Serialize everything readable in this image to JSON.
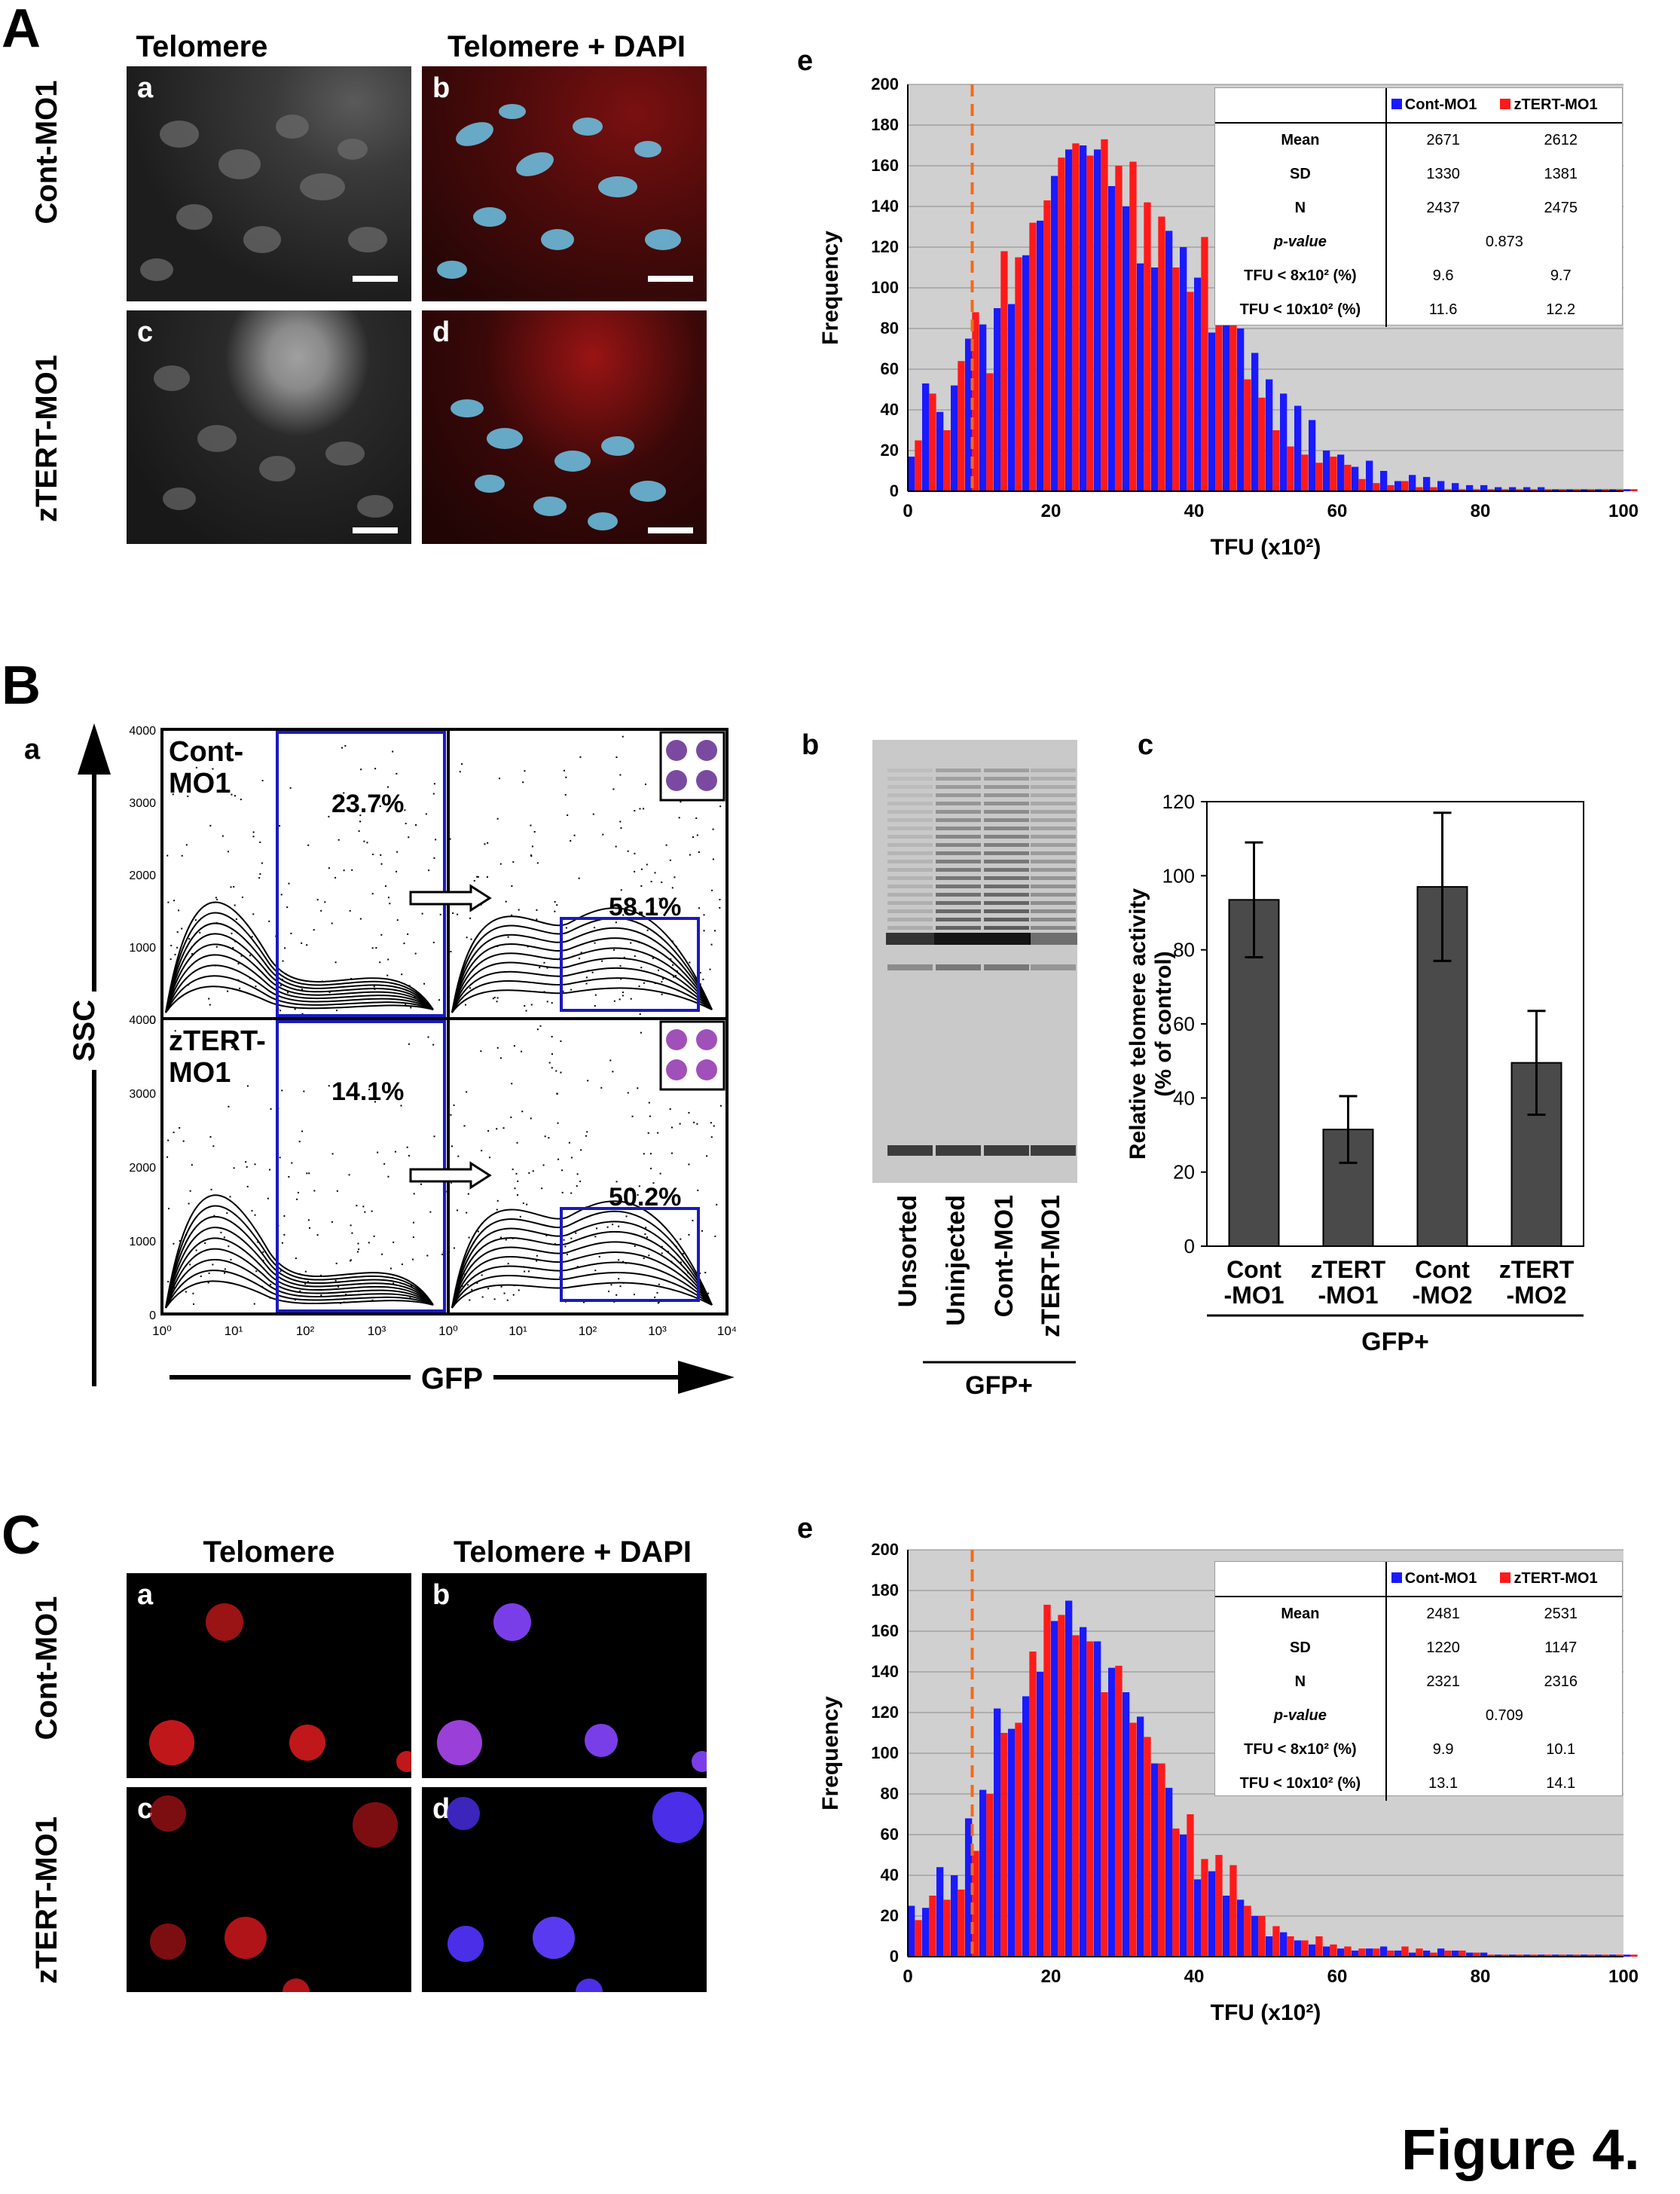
{
  "figure_label": "Figure 4.",
  "panel_A": {
    "letter": "A",
    "col_headers": [
      "Telomere",
      "Telomere + DAPI"
    ],
    "row_labels": [
      "Cont-MO1",
      "zTERT-MO1"
    ],
    "subpanels": [
      "a",
      "b",
      "c",
      "d"
    ]
  },
  "panel_A_e": {
    "letter": "e",
    "xlabel": "TFU (x10²)",
    "ylabel": "Frequency",
    "stats": {
      "legend": [
        "Cont-MO1",
        "zTERT-MO1"
      ],
      "rows": [
        {
          "label": "Mean",
          "a": "2671",
          "b": "2612"
        },
        {
          "label": "SD",
          "a": "1330",
          "b": "1381"
        },
        {
          "label": "N",
          "a": "2437",
          "b": "2475"
        },
        {
          "label": "p-value",
          "p": "0.873"
        },
        {
          "label": "TFU < 8x10² (%)",
          "a": "9.6",
          "b": "9.7"
        },
        {
          "label": "TFU < 10x10² (%)",
          "a": "11.6",
          "b": "12.2"
        }
      ]
    }
  },
  "panel_B": {
    "letter": "B",
    "a": {
      "letter": "a",
      "ylabel": "SSC",
      "xlabel": "GFP",
      "top_label": "Cont-\nMO1",
      "bottom_label": "zTERT-\nMO1",
      "gate_pct": [
        "23.7%",
        "14.1%"
      ],
      "gfp_pct": [
        "58.1%",
        "50.2%"
      ],
      "y_ticks": [
        "0",
        "1000",
        "2000",
        "3000",
        "4000"
      ],
      "x_ticks_left": [
        "10⁰",
        "10¹",
        "10²",
        "10³",
        "10⁰"
      ],
      "x_ticks_right": [
        "10¹",
        "10²",
        "10³",
        "10⁴"
      ]
    },
    "b": {
      "letter": "b",
      "lanes": [
        "Unsorted",
        "Uninjected",
        "Cont-MO1",
        "zTERT-MO1"
      ],
      "group": "GFP+"
    },
    "c": {
      "letter": "c",
      "ylabel": "Relative telomere activity",
      "ylabel2": "(% of control)",
      "group": "GFP+",
      "categories": [
        [
          "Cont",
          "-MO1"
        ],
        [
          "zTERT",
          "-MO1"
        ],
        [
          "Cont",
          "-MO2"
        ],
        [
          "zTERT",
          "-MO2"
        ]
      ]
    }
  },
  "panel_C": {
    "letter": "C",
    "col_headers": [
      "Telomere",
      "Telomere + DAPI"
    ],
    "row_labels": [
      "Cont-MO1",
      "zTERT-MO1"
    ],
    "subpanels": [
      "a",
      "b",
      "c",
      "d"
    ]
  },
  "panel_C_e": {
    "letter": "e",
    "xlabel": "TFU (x10²)",
    "ylabel": "Frequency",
    "stats": {
      "legend": [
        "Cont-MO1",
        "zTERT-MO1"
      ],
      "rows": [
        {
          "label": "Mean",
          "a": "2481",
          "b": "2531"
        },
        {
          "label": "SD",
          "a": "1220",
          "b": "1147"
        },
        {
          "label": "N",
          "a": "2321",
          "b": "2316"
        },
        {
          "label": "p-value",
          "p": "0.709"
        },
        {
          "label": "TFU < 8x10² (%)",
          "a": "9.9",
          "b": "10.1"
        },
        {
          "label": "TFU < 10x10² (%)",
          "a": "13.1",
          "b": "14.1"
        }
      ]
    }
  },
  "colors": {
    "cont": "#1a1aff",
    "ztert": "#ff1a1a",
    "plot_bg": "#d0d0d0",
    "cutoff": "#f26a1b",
    "bar": "#4a4a4a"
  },
  "chart_data": [
    {
      "type": "bar",
      "title": "",
      "xlabel": "TFU (x10²)",
      "ylabel": "Frequency",
      "xlim": [
        0,
        100
      ],
      "ylim": [
        0,
        200
      ],
      "x": [
        0,
        2,
        4,
        6,
        8,
        10,
        12,
        14,
        16,
        18,
        20,
        22,
        24,
        26,
        28,
        30,
        32,
        34,
        36,
        38,
        40,
        42,
        44,
        46,
        48,
        50,
        52,
        54,
        56,
        58,
        60,
        62,
        64,
        66,
        68,
        70,
        72,
        74,
        76,
        78,
        80,
        82,
        84,
        86,
        88,
        90,
        92,
        94,
        96,
        98,
        100
      ],
      "series": [
        {
          "name": "Cont-MO1",
          "values": [
            17,
            53,
            39,
            52,
            75,
            82,
            90,
            92,
            116,
            133,
            155,
            168,
            170,
            168,
            150,
            140,
            112,
            110,
            128,
            120,
            105,
            78,
            88,
            80,
            68,
            55,
            48,
            42,
            35,
            20,
            18,
            12,
            15,
            10,
            5,
            8,
            7,
            5,
            4,
            3,
            3,
            2,
            2,
            2,
            2,
            1,
            1,
            1,
            1,
            1,
            1
          ]
        },
        {
          "name": "zTERT-MO1",
          "values": [
            25,
            48,
            30,
            64,
            88,
            58,
            118,
            115,
            132,
            143,
            164,
            171,
            165,
            173,
            160,
            162,
            142,
            135,
            110,
            98,
            125,
            88,
            84,
            55,
            46,
            30,
            22,
            18,
            14,
            17,
            13,
            6,
            4,
            3,
            5,
            2,
            2,
            1,
            1,
            1,
            1,
            1,
            1,
            1,
            1,
            1,
            1,
            1,
            1,
            1,
            1
          ]
        }
      ],
      "cutoff_x": 9
    },
    {
      "type": "bar",
      "title": "",
      "xlabel": "TFU (x10²)",
      "ylabel": "Frequency",
      "xlim": [
        0,
        100
      ],
      "ylim": [
        0,
        200
      ],
      "x": [
        0,
        2,
        4,
        6,
        8,
        10,
        12,
        14,
        16,
        18,
        20,
        22,
        24,
        26,
        28,
        30,
        32,
        34,
        36,
        38,
        40,
        42,
        44,
        46,
        48,
        50,
        52,
        54,
        56,
        58,
        60,
        62,
        64,
        66,
        68,
        70,
        72,
        74,
        76,
        78,
        80,
        82,
        84,
        86,
        88,
        90,
        92,
        94,
        96,
        98,
        100
      ],
      "series": [
        {
          "name": "Cont-MO1",
          "values": [
            25,
            24,
            44,
            40,
            68,
            82,
            122,
            112,
            128,
            140,
            165,
            175,
            162,
            155,
            142,
            130,
            118,
            95,
            83,
            60,
            38,
            42,
            30,
            28,
            20,
            10,
            12,
            8,
            6,
            5,
            4,
            3,
            4,
            5,
            3,
            2,
            3,
            4,
            3,
            2,
            2,
            1,
            1,
            1,
            1,
            1,
            1,
            1,
            1,
            1,
            1
          ]
        },
        {
          "name": "zTERT-MO1",
          "values": [
            18,
            30,
            28,
            33,
            52,
            80,
            110,
            115,
            150,
            173,
            168,
            158,
            155,
            130,
            143,
            115,
            108,
            95,
            63,
            70,
            48,
            50,
            45,
            25,
            20,
            15,
            10,
            8,
            10,
            6,
            5,
            4,
            4,
            3,
            5,
            4,
            2,
            3,
            3,
            2,
            1,
            1,
            1,
            1,
            1,
            1,
            1,
            1,
            1,
            1,
            1
          ]
        }
      ],
      "cutoff_x": 9
    },
    {
      "type": "bar",
      "title": "",
      "ylabel": "Relative telomere activity (% of control)",
      "xlabel": "GFP+",
      "ylim": [
        0,
        120
      ],
      "categories": [
        "Cont -MO1",
        "zTERT -MO1",
        "Cont -MO2",
        "zTERT -MO2"
      ],
      "values": [
        93.5,
        31.5,
        97,
        49.5
      ],
      "errors": [
        15.5,
        9,
        20,
        14
      ],
      "y_ticks": [
        0,
        20,
        40,
        60,
        80,
        100,
        120
      ]
    }
  ]
}
